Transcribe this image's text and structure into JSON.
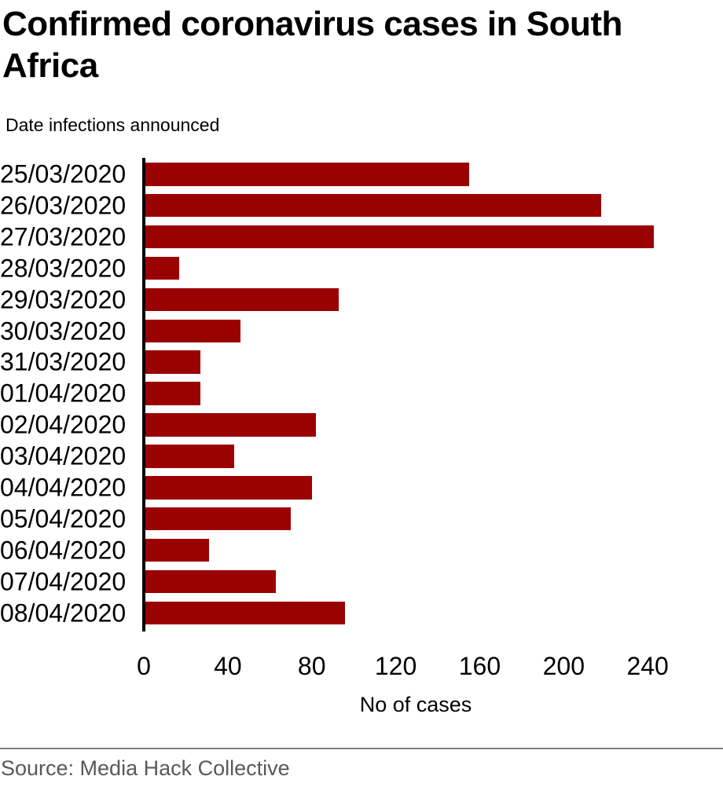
{
  "page": {
    "title": "Confirmed coronavirus cases in South Africa",
    "subtitle": "Date infections announced",
    "source": "Source: Media Hack Collective"
  },
  "colors": {
    "bar": "#9a0202",
    "axis": "#000000",
    "divider": "#7f7f7f",
    "source_text": "#58595b",
    "text": "#000000",
    "background": "#ffffff"
  },
  "chart_data": {
    "type": "bar",
    "orientation": "horizontal",
    "title": "Confirmed coronavirus cases in South Africa",
    "subtitle": "Date infections announced",
    "xlabel": "No of cases",
    "ylabel": "Date infections announced",
    "categories": [
      "25/03/2020",
      "26/03/2020",
      "27/03/2020",
      "28/03/2020",
      "29/03/2020",
      "30/03/2020",
      "31/03/2020",
      "01/04/2020",
      "02/04/2020",
      "03/04/2020",
      "04/04/2020",
      "05/04/2020",
      "06/04/2020",
      "07/04/2020",
      "08/04/2020"
    ],
    "values": [
      155,
      218,
      243,
      17,
      93,
      46,
      27,
      27,
      82,
      43,
      80,
      70,
      31,
      63,
      96
    ],
    "xticks": [
      0,
      40,
      80,
      120,
      160,
      200,
      240
    ],
    "xlim": [
      0,
      255
    ],
    "grid": false,
    "legend": false,
    "bar_color": "#9a0202",
    "source": "Source: Media Hack Collective"
  }
}
